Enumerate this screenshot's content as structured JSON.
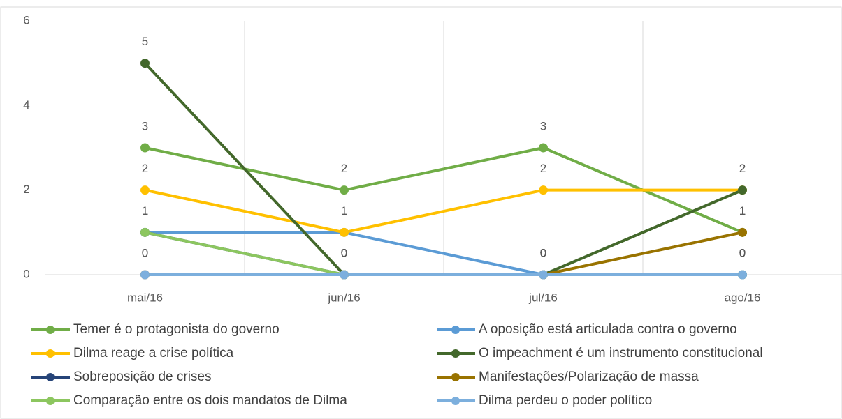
{
  "chart_data": {
    "type": "line",
    "categories": [
      "mai/16",
      "jun/16",
      "jul/16",
      "ago/16"
    ],
    "series": [
      {
        "name": "Temer é o protagonista do governo",
        "color": "#70ad47",
        "values": [
          3,
          2,
          3,
          1
        ]
      },
      {
        "name": "A oposição está articulada contra o governo",
        "color": "#5b9bd5",
        "values": [
          1,
          1,
          0,
          0
        ]
      },
      {
        "name": "Dilma reage a crise política",
        "color": "#ffc000",
        "values": [
          2,
          1,
          2,
          2
        ]
      },
      {
        "name": "O impeachment é um instrumento constitucional",
        "color": "#43682b",
        "values": [
          5,
          0,
          0,
          2
        ]
      },
      {
        "name": "Sobreposição de crises",
        "color": "#264478",
        "values": [
          1,
          0,
          0,
          0
        ]
      },
      {
        "name": "Manifestações/Polarização de massa",
        "color": "#997300",
        "values": [
          0,
          0,
          0,
          1
        ]
      },
      {
        "name": "Comparação entre os dois mandatos de Dilma",
        "color": "#8cc65f",
        "values": [
          1,
          0,
          0,
          0
        ]
      },
      {
        "name": "Dilma perdeu o poder político",
        "color": "#7cafdd",
        "values": [
          0,
          0,
          0,
          0
        ]
      }
    ],
    "ylim": [
      0,
      6
    ],
    "yticks": [
      0,
      2,
      4,
      6
    ],
    "grid": true,
    "data_labels": true,
    "legend": "bottom"
  }
}
